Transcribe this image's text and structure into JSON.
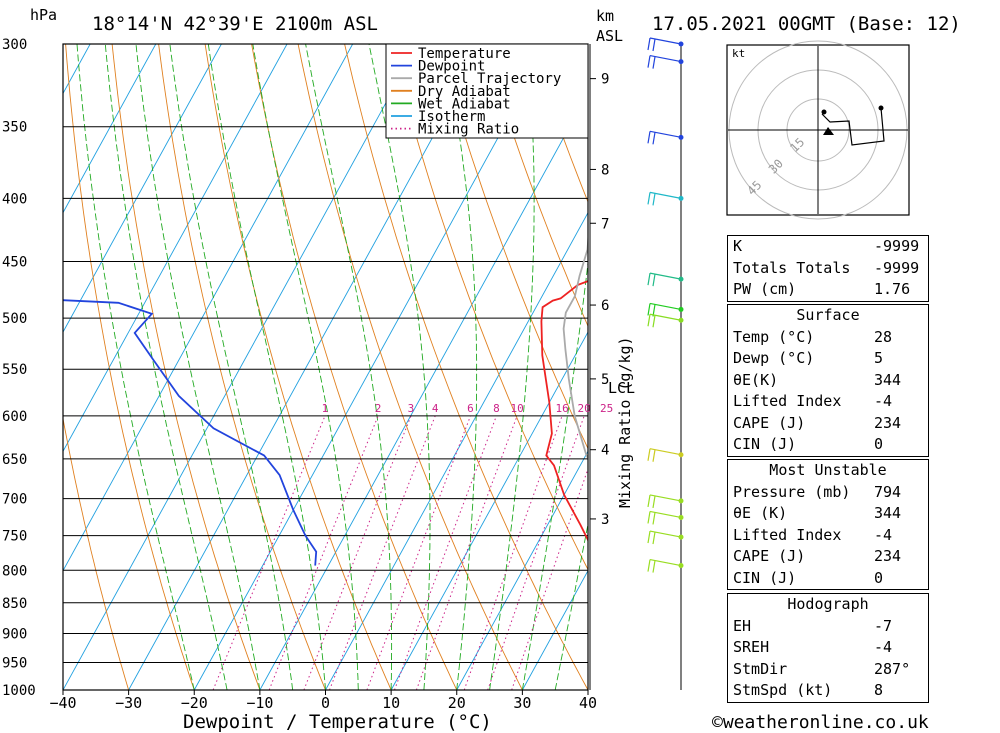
{
  "header": {
    "pressure_unit": "hPa",
    "location": "18°14'N  42°39'E  2100m  ASL",
    "km_unit": "km",
    "asl_label": "ASL",
    "datetime": "17.05.2021  00GMT  (Base: 12)"
  },
  "legend": {
    "items": [
      {
        "label": "Temperature",
        "color": "#ee2222",
        "style": "solid"
      },
      {
        "label": "Dewpoint",
        "color": "#2244dd",
        "style": "solid"
      },
      {
        "label": "Parcel Trajectory",
        "color": "#aaaaaa",
        "style": "solid"
      },
      {
        "label": "Dry Adiabat",
        "color": "#e08020",
        "style": "solid"
      },
      {
        "label": "Wet Adiabat",
        "color": "#22aa22",
        "style": "solid"
      },
      {
        "label": "Isotherm",
        "color": "#20a0e0",
        "style": "solid"
      },
      {
        "label": "Mixing Ratio",
        "color": "#cc2288",
        "style": "dotted"
      }
    ]
  },
  "chart_data": {
    "type": "line",
    "xlabel": "Dewpoint / Temperature (°C)",
    "ylabel": "hPa",
    "xlim": [
      -40,
      40
    ],
    "ylim": [
      1000,
      300
    ],
    "x_ticks": [
      "−40",
      "−30",
      "−20",
      "−10",
      "0",
      "10",
      "20",
      "30",
      "40"
    ],
    "pressure_levels": [
      300,
      350,
      400,
      450,
      500,
      550,
      600,
      650,
      700,
      750,
      800,
      850,
      900,
      950,
      1000
    ],
    "km_ticks": [
      {
        "label": "9",
        "p": 320
      },
      {
        "label": "8",
        "p": 379
      },
      {
        "label": "7",
        "p": 419
      },
      {
        "label": "6",
        "p": 488
      },
      {
        "label": "5",
        "p": 560
      },
      {
        "label": "4",
        "p": 639
      },
      {
        "label": "3",
        "p": 727
      }
    ],
    "lcl_label": "LCL",
    "mixing_ratio_axis_label": "Mixing Ratio (g/kg)",
    "mixing_ratio_labels": [
      "1",
      "2",
      "3",
      "4",
      "6",
      "8",
      "10",
      "16",
      "20",
      "25"
    ],
    "series": [
      {
        "name": "Temperature",
        "color": "#ee2222",
        "points": [
          [
            34.5,
            790
          ],
          [
            31,
            789
          ],
          [
            29,
            770
          ],
          [
            25,
            735
          ],
          [
            20,
            695
          ],
          [
            16,
            658
          ],
          [
            14,
            646
          ],
          [
            13,
            620
          ],
          [
            10,
            585
          ],
          [
            5,
            536
          ],
          [
            2,
            503
          ],
          [
            1,
            490
          ],
          [
            2,
            484
          ],
          [
            3,
            482
          ],
          [
            4.5,
            470
          ],
          [
            6,
            466
          ],
          [
            5,
            445
          ],
          [
            3,
            418
          ],
          [
            0,
            385
          ],
          [
            -4,
            352
          ],
          [
            -7,
            335
          ],
          [
            -9,
            312
          ],
          [
            -10,
            300
          ]
        ]
      },
      {
        "name": "Dewpoint",
        "color": "#2244dd",
        "points": [
          [
            -12,
            793
          ],
          [
            -13,
            773
          ],
          [
            -16,
            750
          ],
          [
            -20,
            715
          ],
          [
            -25,
            670
          ],
          [
            -29,
            646
          ],
          [
            -39,
            614
          ],
          [
            -47,
            578
          ],
          [
            -54,
            540
          ],
          [
            -59,
            514
          ],
          [
            -58,
            496
          ],
          [
            -64,
            486
          ],
          [
            -75,
            483
          ],
          [
            -79,
            478
          ],
          [
            -86,
            465
          ],
          [
            -93,
            458
          ],
          [
            -97,
            400
          ],
          [
            -89,
            370
          ],
          [
            -105,
            348
          ],
          [
            -110,
            316
          ],
          [
            -117,
            302
          ]
        ]
      },
      {
        "name": "Parcel Trajectory",
        "color": "#aaaaaa",
        "points": [
          [
            36,
            760
          ],
          [
            30,
            715
          ],
          [
            26,
            690
          ],
          [
            20,
            645
          ],
          [
            15,
            600
          ],
          [
            11,
            560
          ],
          [
            8,
            530
          ],
          [
            6,
            510
          ],
          [
            5,
            495
          ],
          [
            5,
            480
          ],
          [
            4,
            462
          ],
          [
            3,
            440
          ],
          [
            1,
            418
          ],
          [
            -1,
            395
          ],
          [
            -4,
            372
          ],
          [
            -6,
            352
          ],
          [
            -10,
            318
          ],
          [
            -12,
            300
          ]
        ]
      }
    ]
  },
  "wind_barbs": {
    "levels": [
      {
        "p": 300,
        "color": "#2244dd"
      },
      {
        "p": 310,
        "color": "#2244dd"
      },
      {
        "p": 357,
        "color": "#2244dd"
      },
      {
        "p": 400,
        "color": "#20b8c8"
      },
      {
        "p": 465,
        "color": "#22bb88"
      },
      {
        "p": 492,
        "color": "#22cc22"
      },
      {
        "p": 502,
        "color": "#88dd22"
      },
      {
        "p": 645,
        "color": "#cccc22"
      },
      {
        "p": 703,
        "color": "#99dd22"
      },
      {
        "p": 725,
        "color": "#99dd22"
      },
      {
        "p": 752,
        "color": "#99dd22"
      },
      {
        "p": 793,
        "color": "#99dd22"
      }
    ]
  },
  "hodograph": {
    "unit_label": "kt",
    "ring_labels": [
      "15",
      "30",
      "45"
    ]
  },
  "indices": {
    "general": [
      {
        "label": "K",
        "value": "-9999"
      },
      {
        "label": "Totals Totals",
        "value": "-9999"
      },
      {
        "label": "PW (cm)",
        "value": "1.76"
      }
    ],
    "surface": {
      "title": "Surface",
      "rows": [
        {
          "label": "Temp (°C)",
          "value": "28"
        },
        {
          "label": "Dewp (°C)",
          "value": "5"
        },
        {
          "label": "θE(K)",
          "value": "344"
        },
        {
          "label": "Lifted Index",
          "value": "-4"
        },
        {
          "label": "CAPE (J)",
          "value": "234"
        },
        {
          "label": "CIN (J)",
          "value": "0"
        }
      ]
    },
    "most_unstable": {
      "title": "Most Unstable",
      "rows": [
        {
          "label": "Pressure (mb)",
          "value": "794"
        },
        {
          "label": "θE (K)",
          "value": "344"
        },
        {
          "label": "Lifted Index",
          "value": "-4"
        },
        {
          "label": "CAPE (J)",
          "value": "234"
        },
        {
          "label": "CIN (J)",
          "value": "0"
        }
      ]
    },
    "hodograph": {
      "title": "Hodograph",
      "rows": [
        {
          "label": "EH",
          "value": "-7"
        },
        {
          "label": "SREH",
          "value": "-4"
        },
        {
          "label": "StmDir",
          "value": "287°"
        },
        {
          "label": "StmSpd (kt)",
          "value": "8"
        }
      ]
    }
  },
  "footer": {
    "copyright": "©weatheronline.co.uk"
  }
}
